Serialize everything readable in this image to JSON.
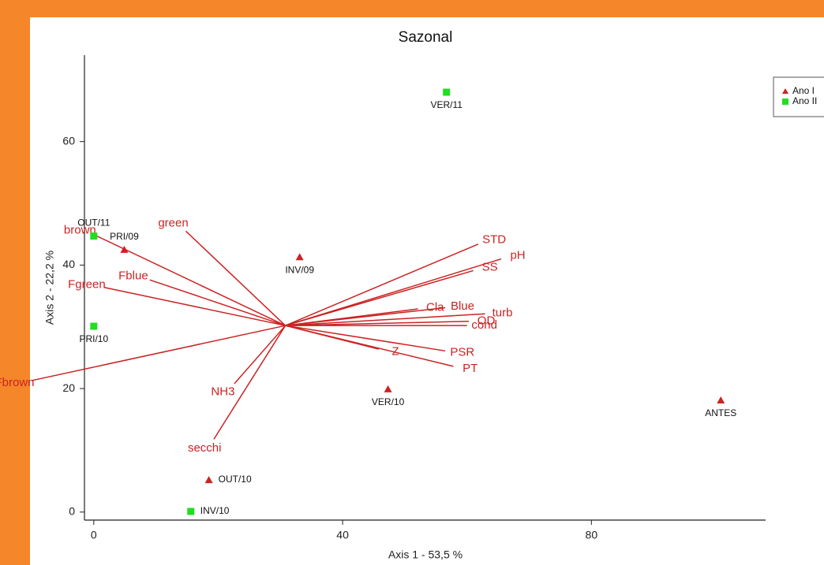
{
  "chart_data": {
    "type": "scatter",
    "title": "Sazonal",
    "xlabel": "Axis 1 - 53,5 %",
    "ylabel": "Axis 2 - 22,2 %",
    "xlim": [
      -1.5,
      108
    ],
    "ylim": [
      -1.3,
      74
    ],
    "xticks": [
      0,
      40,
      80
    ],
    "yticks": [
      0,
      20,
      40,
      60
    ],
    "legend": "upper right",
    "series": [
      {
        "name": "Ano I",
        "color": "#cc2222",
        "marker": "triangle",
        "labels": [
          "PRI/09",
          "INV/09",
          "VER/10",
          "ANTES",
          "OUT/10"
        ],
        "x": [
          4.9,
          33.1,
          47.3,
          100.8,
          18.5
        ],
        "y": [
          42.5,
          41.3,
          19.9,
          18.1,
          5.2
        ]
      },
      {
        "name": "Ano II",
        "color": "#22dd22",
        "marker": "square",
        "labels": [
          "OUT/11",
          "PRI/10",
          "VER/11",
          "INV/10"
        ],
        "x": [
          0,
          0,
          56.7,
          15.6
        ],
        "y": [
          44.7,
          30.1,
          68.0,
          0.1
        ]
      }
    ],
    "vectors": {
      "color": "#cc2222",
      "origin": {
        "x": 30.8,
        "y": 30.2
      },
      "labels": [
        "green",
        "brown",
        "Fblue",
        "Fgreen",
        "Fbrown",
        "NH3",
        "secchi",
        "STD",
        "pH",
        "SS",
        "Cla",
        "Blue",
        "turb",
        "OD",
        "cond",
        "PSR",
        "Z",
        "PT"
      ],
      "x": [
        14.8,
        0.3,
        9.0,
        1.6,
        -10,
        22.6,
        19.3,
        61.8,
        65.5,
        61.0,
        52.1,
        56.5,
        62.9,
        60.3,
        60.0,
        56.5,
        45.8,
        57.8
      ],
      "y": [
        45.5,
        44.8,
        37.6,
        36.4,
        21.3,
        20.8,
        11.8,
        43.4,
        41.0,
        39.1,
        32.9,
        33.1,
        32.1,
        30.9,
        30.2,
        26.1,
        26.4,
        23.6
      ]
    }
  }
}
